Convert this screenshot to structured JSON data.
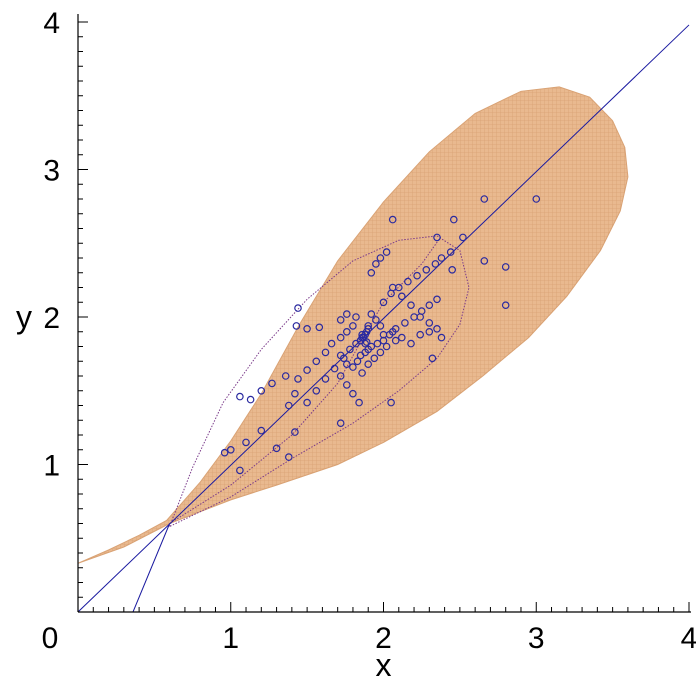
{
  "chart_data": {
    "type": "scatter",
    "xlabel": "x",
    "ylabel": "y",
    "xlim": [
      0,
      4
    ],
    "ylim": [
      0,
      4
    ],
    "xticks": [
      "0",
      "1",
      "2",
      "3",
      "4"
    ],
    "yticks": [
      "1",
      "2",
      "3",
      "4"
    ],
    "origin_label": "0",
    "grid": false,
    "colors": {
      "region_fill": "#e9b98f",
      "region_grid": "#d9a274",
      "points": "#2a2aa0",
      "lines": "#1a1aa0",
      "curves": "#7a3a8a",
      "axes": "#000000"
    },
    "region": [
      [
        0.0,
        0.33
      ],
      [
        0.2,
        0.42
      ],
      [
        0.4,
        0.52
      ],
      [
        0.58,
        0.62
      ],
      [
        0.8,
        0.88
      ],
      [
        1.0,
        1.16
      ],
      [
        1.2,
        1.48
      ],
      [
        1.45,
        1.95
      ],
      [
        1.7,
        2.38
      ],
      [
        2.0,
        2.78
      ],
      [
        2.3,
        3.12
      ],
      [
        2.6,
        3.38
      ],
      [
        2.9,
        3.53
      ],
      [
        3.15,
        3.56
      ],
      [
        3.35,
        3.49
      ],
      [
        3.5,
        3.33
      ],
      [
        3.58,
        3.15
      ],
      [
        3.6,
        2.95
      ],
      [
        3.55,
        2.72
      ],
      [
        3.42,
        2.45
      ],
      [
        3.2,
        2.14
      ],
      [
        2.95,
        1.86
      ],
      [
        2.65,
        1.6
      ],
      [
        2.35,
        1.36
      ],
      [
        2.0,
        1.15
      ],
      [
        1.7,
        1.0
      ],
      [
        1.3,
        0.86
      ],
      [
        1.0,
        0.76
      ],
      [
        0.6,
        0.6
      ],
      [
        0.3,
        0.44
      ],
      [
        0.0,
        0.33
      ]
    ],
    "lines": [
      {
        "points": [
          [
            0.0,
            0.0
          ],
          [
            4.0,
            3.98
          ]
        ]
      },
      {
        "points": [
          [
            0.36,
            0.0
          ],
          [
            0.6,
            0.6
          ]
        ]
      }
    ],
    "curves": [
      {
        "points": [
          [
            0.6,
            0.58
          ],
          [
            0.75,
            0.98
          ],
          [
            0.95,
            1.42
          ],
          [
            1.2,
            1.78
          ],
          [
            1.5,
            2.12
          ],
          [
            1.8,
            2.38
          ],
          [
            2.1,
            2.52
          ],
          [
            2.35,
            2.55
          ],
          [
            2.5,
            2.45
          ],
          [
            2.56,
            2.2
          ],
          [
            2.5,
            1.95
          ],
          [
            2.35,
            1.72
          ],
          [
            2.1,
            1.5
          ],
          [
            1.8,
            1.28
          ],
          [
            1.4,
            1.04
          ],
          [
            1.0,
            0.78
          ],
          [
            0.6,
            0.58
          ]
        ]
      },
      {
        "points": [
          [
            0.6,
            0.6
          ],
          [
            1.0,
            0.86
          ],
          [
            1.4,
            1.2
          ],
          [
            1.7,
            1.55
          ],
          [
            1.85,
            1.83
          ],
          [
            2.0,
            2.1
          ],
          [
            2.25,
            2.36
          ],
          [
            2.38,
            2.55
          ]
        ]
      }
    ],
    "series": [
      {
        "marker": "circle",
        "x": [
          1.44,
          1.43,
          1.5,
          1.58,
          1.72,
          1.42,
          1.38,
          1.3,
          1.2,
          1.1,
          1.06,
          1.0,
          0.96,
          1.06,
          1.13,
          1.2,
          1.27,
          1.36,
          1.44,
          1.5,
          1.56,
          1.62,
          1.66,
          1.72,
          1.76,
          1.8,
          1.38,
          1.42,
          1.5,
          1.56,
          1.62,
          1.68,
          1.74,
          1.78,
          1.82,
          1.85,
          1.86,
          1.88,
          1.89,
          1.9,
          1.9,
          1.82,
          1.76,
          1.72,
          1.72,
          1.76,
          1.8,
          1.83,
          1.85,
          1.88,
          1.9,
          1.92,
          1.96,
          2.0,
          2.04,
          2.08,
          2.14,
          2.2,
          2.25,
          2.3,
          2.35,
          2.0,
          2.05,
          2.1,
          2.16,
          2.22,
          2.28,
          2.34,
          2.38,
          2.44,
          1.92,
          1.95,
          1.98,
          2.02,
          2.06,
          2.12,
          2.18,
          2.24,
          2.3,
          1.84,
          1.8,
          1.76,
          1.72,
          1.86,
          1.9,
          1.94,
          1.98,
          2.02,
          2.08,
          2.0,
          1.98,
          1.95,
          1.92,
          2.06,
          2.12,
          2.18,
          2.24,
          2.3,
          2.35,
          2.38,
          2.32,
          2.45,
          2.52,
          2.66,
          2.8,
          2.66,
          2.8,
          3.0,
          2.46,
          2.35,
          2.06,
          2.05,
          1.86,
          1.85,
          1.88,
          1.87,
          1.89
        ],
        "y": [
          2.06,
          1.94,
          1.92,
          1.93,
          1.28,
          1.22,
          1.05,
          1.11,
          1.23,
          1.15,
          0.96,
          1.1,
          1.08,
          1.46,
          1.44,
          1.5,
          1.55,
          1.6,
          1.58,
          1.64,
          1.7,
          1.76,
          1.82,
          1.86,
          1.9,
          1.94,
          1.4,
          1.48,
          1.42,
          1.5,
          1.58,
          1.65,
          1.72,
          1.78,
          1.82,
          1.84,
          1.86,
          1.88,
          1.9,
          1.92,
          1.94,
          2.0,
          2.02,
          1.98,
          1.74,
          1.68,
          1.66,
          1.7,
          1.74,
          1.76,
          1.78,
          1.8,
          1.82,
          1.84,
          1.88,
          1.92,
          1.96,
          2.0,
          2.04,
          2.08,
          2.12,
          2.1,
          2.16,
          2.2,
          2.24,
          2.28,
          2.32,
          2.36,
          2.4,
          2.44,
          2.3,
          2.36,
          2.4,
          2.44,
          2.2,
          2.14,
          2.08,
          2.0,
          1.96,
          1.42,
          1.48,
          1.54,
          1.6,
          1.62,
          1.68,
          1.72,
          1.76,
          1.8,
          1.84,
          1.88,
          1.94,
          1.98,
          2.02,
          1.9,
          1.86,
          1.82,
          1.88,
          1.9,
          1.92,
          1.86,
          1.72,
          2.32,
          2.54,
          2.8,
          2.34,
          2.38,
          2.08,
          2.8,
          2.66,
          2.54,
          2.66,
          1.42,
          1.88,
          1.84,
          1.82,
          1.86,
          1.83
        ]
      }
    ]
  }
}
